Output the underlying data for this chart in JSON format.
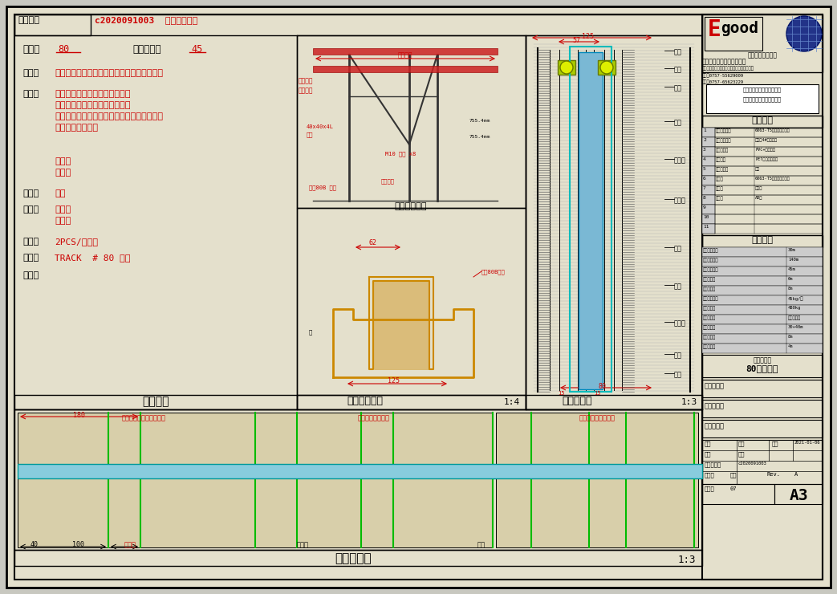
{
  "bg_color": "#c8c8c0",
  "paper_color": "#e4e0cc",
  "white": "#ffffff",
  "black": "#000000",
  "red": "#cc0000",
  "blue": "#0000cc",
  "gray": "#888888",
  "light_gray": "#cccccc",
  "cyan": "#00aaaa",
  "green": "#00aa00",
  "orange": "#cc8800",
  "file_number": "c2020091003  最新图纸方案",
  "title_text": "文件编号",
  "model_label": "型号：",
  "model_value": "80",
  "sound_label": "隔音系数：",
  "sound_value": "45",
  "panel_label": "板面：",
  "panel_value": "顶部支撑，全方向移动，手动操作，隔断屏风",
  "seal_label": "密封：",
  "seal_lines": [
    "顶部：手动机动撑和密封胶条。",
    "底部：手动机动撑和密封胶条。",
    "隔断之間采用垂直嵌锁（舌榫式）结构，並带",
    "有隔音密封胶条。"
  ],
  "material_lines": [
    "铝型材",
    "收边铝"
  ],
  "surface_label": "表面：",
  "surface_value": "待定",
  "headtail_label": "头尾：",
  "headtail_lines": [
    "头部：",
    "尾部："
  ],
  "wheel_label": "轮子：",
  "wheel_value": "2PCS/片屏风",
  "rail_label": "路轨：",
  "rail_value": "TRACK  # 80 路轨",
  "option_label": "选项：",
  "product_intro": "产品介绍",
  "track_section": "轨道图剖面图",
  "track_scale": "1:4",
  "vertical_section": "垂直截面图",
  "vertical_scale": "1:3",
  "horizontal_section": "水平截面图",
  "horizontal_scale": "1:3",
  "company_name": "佛山一固隔断制品有限公司",
  "company_slogan": "独占一固隔断屏风",
  "address": "地址：佛山顺德区勒流街道工业区二路第二号",
  "phone": "电话：0757-55629009",
  "fax": "传真：0757-65623229",
  "material_title": "材质说明",
  "materials": [
    [
      "1",
      "铝合，铝料：",
      "6063-T5铝型材阳极处理"
    ],
    [
      "2",
      "走水平品件：",
      "高品，4#号镀锌钢"
    ],
    [
      "3",
      "密封条带：",
      "PVC+橡胶乙烯"
    ],
    [
      "4",
      "隔音棉：",
      "PET隔声吸音棉棉"
    ],
    [
      "5",
      "胶选处理：",
      "橡皮"
    ],
    [
      "6",
      "油漆：",
      "6063-T5铝型材阳极处理"
    ],
    [
      "7",
      "布料：",
      "防布料"
    ],
    [
      "8",
      "油料：",
      "AB胶"
    ],
    [
      "9",
      "",
      ""
    ],
    [
      "10",
      "",
      ""
    ],
    [
      "11",
      "",
      ""
    ]
  ],
  "tech_title": "技术参数",
  "tech_params": [
    [
      "隔音性能力：",
      "30m"
    ],
    [
      "可滑动面积：",
      "140m"
    ],
    [
      "滑轨可挡荷：",
      "45m"
    ],
    [
      "有效高度：",
      "6m"
    ],
    [
      "估计重量：",
      "8m"
    ],
    [
      "最薄板重量：",
      "45kg/片"
    ],
    [
      "地标荷载：",
      "480kg"
    ],
    [
      "挂墙方式：",
      "膨胀式安装"
    ],
    [
      "调节范围：",
      "30+40m"
    ],
    [
      "超声厚度：",
      "8m"
    ],
    [
      "超内厚度：",
      "4m"
    ]
  ],
  "drawing_standard": "80型单片式",
  "project_name": "工程名称：",
  "project_detail": "图纸别别：",
  "client_confirm": "客户确认：",
  "a3_label": "A3"
}
